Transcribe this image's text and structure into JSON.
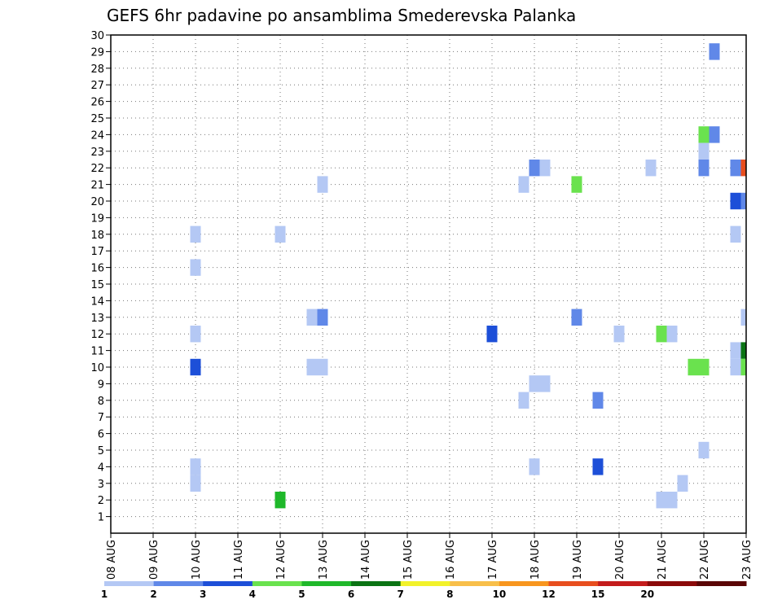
{
  "chart_data": {
    "type": "heatmap",
    "title": "GEFS 6hr padavine po ansamblima Smederevska Palanka",
    "x_tick_labels": [
      "08 AUG",
      "09 AUG",
      "10 AUG",
      "11 AUG",
      "12 AUG",
      "13 AUG",
      "14 AUG",
      "15 AUG",
      "16 AUG",
      "17 AUG",
      "18 AUG",
      "19 AUG",
      "20 AUG",
      "21 AUG",
      "22 AUG",
      "23 AUG"
    ],
    "y_tick_labels": [
      "1",
      "2",
      "3",
      "4",
      "5",
      "6",
      "7",
      "8",
      "9",
      "10",
      "11",
      "12",
      "13",
      "14",
      "15",
      "16",
      "17",
      "18",
      "19",
      "20",
      "21",
      "22",
      "23",
      "24",
      "25",
      "26",
      "27",
      "28",
      "29",
      "30"
    ],
    "xlim_days": [
      0,
      15
    ],
    "ylim": [
      0,
      30
    ],
    "grid": true,
    "colorbar": {
      "labels": [
        "1",
        "2",
        "3",
        "4",
        "5",
        "6",
        "7",
        "8",
        "10",
        "12",
        "15",
        "20"
      ],
      "colors": [
        "#b4c8f4",
        "#6088e8",
        "#1d4fd8",
        "#6ae24e",
        "#1fb82a",
        "#0b7414",
        "#f2f22a",
        "#f8bf4a",
        "#f8961e",
        "#e84e1e",
        "#c41c1c",
        "#8b0a0a",
        "#5a0606"
      ]
    },
    "cells": [
      {
        "t": 2.0,
        "member": 18,
        "value": 1
      },
      {
        "t": 2.0,
        "member": 16,
        "value": 1
      },
      {
        "t": 2.0,
        "member": 12,
        "value": 1
      },
      {
        "t": 2.0,
        "member": 10,
        "value": 3
      },
      {
        "t": 2.0,
        "member": 4,
        "value": 1
      },
      {
        "t": 2.0,
        "member": 3,
        "value": 1
      },
      {
        "t": 4.0,
        "member": 18,
        "value": 1
      },
      {
        "t": 4.0,
        "member": 2,
        "value": 5
      },
      {
        "t": 4.75,
        "member": 13,
        "value": 1
      },
      {
        "t": 4.75,
        "member": 10,
        "value": 1
      },
      {
        "t": 5.0,
        "member": 21,
        "value": 1
      },
      {
        "t": 5.0,
        "member": 13,
        "value": 2
      },
      {
        "t": 5.0,
        "member": 10,
        "value": 1
      },
      {
        "t": 9.0,
        "member": 12,
        "value": 3
      },
      {
        "t": 9.75,
        "member": 21,
        "value": 1
      },
      {
        "t": 9.75,
        "member": 8,
        "value": 1
      },
      {
        "t": 10.0,
        "member": 22,
        "value": 2
      },
      {
        "t": 10.0,
        "member": 9,
        "value": 1
      },
      {
        "t": 10.0,
        "member": 4,
        "value": 1
      },
      {
        "t": 10.25,
        "member": 22,
        "value": 1
      },
      {
        "t": 10.25,
        "member": 9,
        "value": 1
      },
      {
        "t": 11.0,
        "member": 21,
        "value": 4
      },
      {
        "t": 11.0,
        "member": 13,
        "value": 2
      },
      {
        "t": 11.5,
        "member": 8,
        "value": 2
      },
      {
        "t": 11.5,
        "member": 4,
        "value": 3
      },
      {
        "t": 12.0,
        "member": 12,
        "value": 1
      },
      {
        "t": 12.75,
        "member": 22,
        "value": 1
      },
      {
        "t": 13.0,
        "member": 12,
        "value": 4
      },
      {
        "t": 13.0,
        "member": 2,
        "value": 1
      },
      {
        "t": 13.25,
        "member": 12,
        "value": 1
      },
      {
        "t": 13.25,
        "member": 2,
        "value": 1
      },
      {
        "t": 13.5,
        "member": 3,
        "value": 1
      },
      {
        "t": 13.75,
        "member": 10,
        "value": 4
      },
      {
        "t": 14.0,
        "member": 24,
        "value": 4
      },
      {
        "t": 14.0,
        "member": 23,
        "value": 1
      },
      {
        "t": 14.0,
        "member": 22,
        "value": 2
      },
      {
        "t": 14.0,
        "member": 10,
        "value": 4
      },
      {
        "t": 14.0,
        "member": 5,
        "value": 1
      },
      {
        "t": 14.25,
        "member": 29,
        "value": 2
      },
      {
        "t": 14.25,
        "member": 24,
        "value": 2
      },
      {
        "t": 14.75,
        "member": 22,
        "value": 2
      },
      {
        "t": 14.75,
        "member": 20,
        "value": 3
      },
      {
        "t": 14.75,
        "member": 18,
        "value": 1
      },
      {
        "t": 14.75,
        "member": 11,
        "value": 1
      },
      {
        "t": 14.75,
        "member": 10,
        "value": 1
      },
      {
        "t": 15.0,
        "member": 22,
        "value": 10
      },
      {
        "t": 15.0,
        "member": 20,
        "value": 2
      },
      {
        "t": 15.0,
        "member": 13,
        "value": 1
      },
      {
        "t": 15.0,
        "member": 11,
        "value": 6
      },
      {
        "t": 15.0,
        "member": 10,
        "value": 4
      }
    ]
  }
}
